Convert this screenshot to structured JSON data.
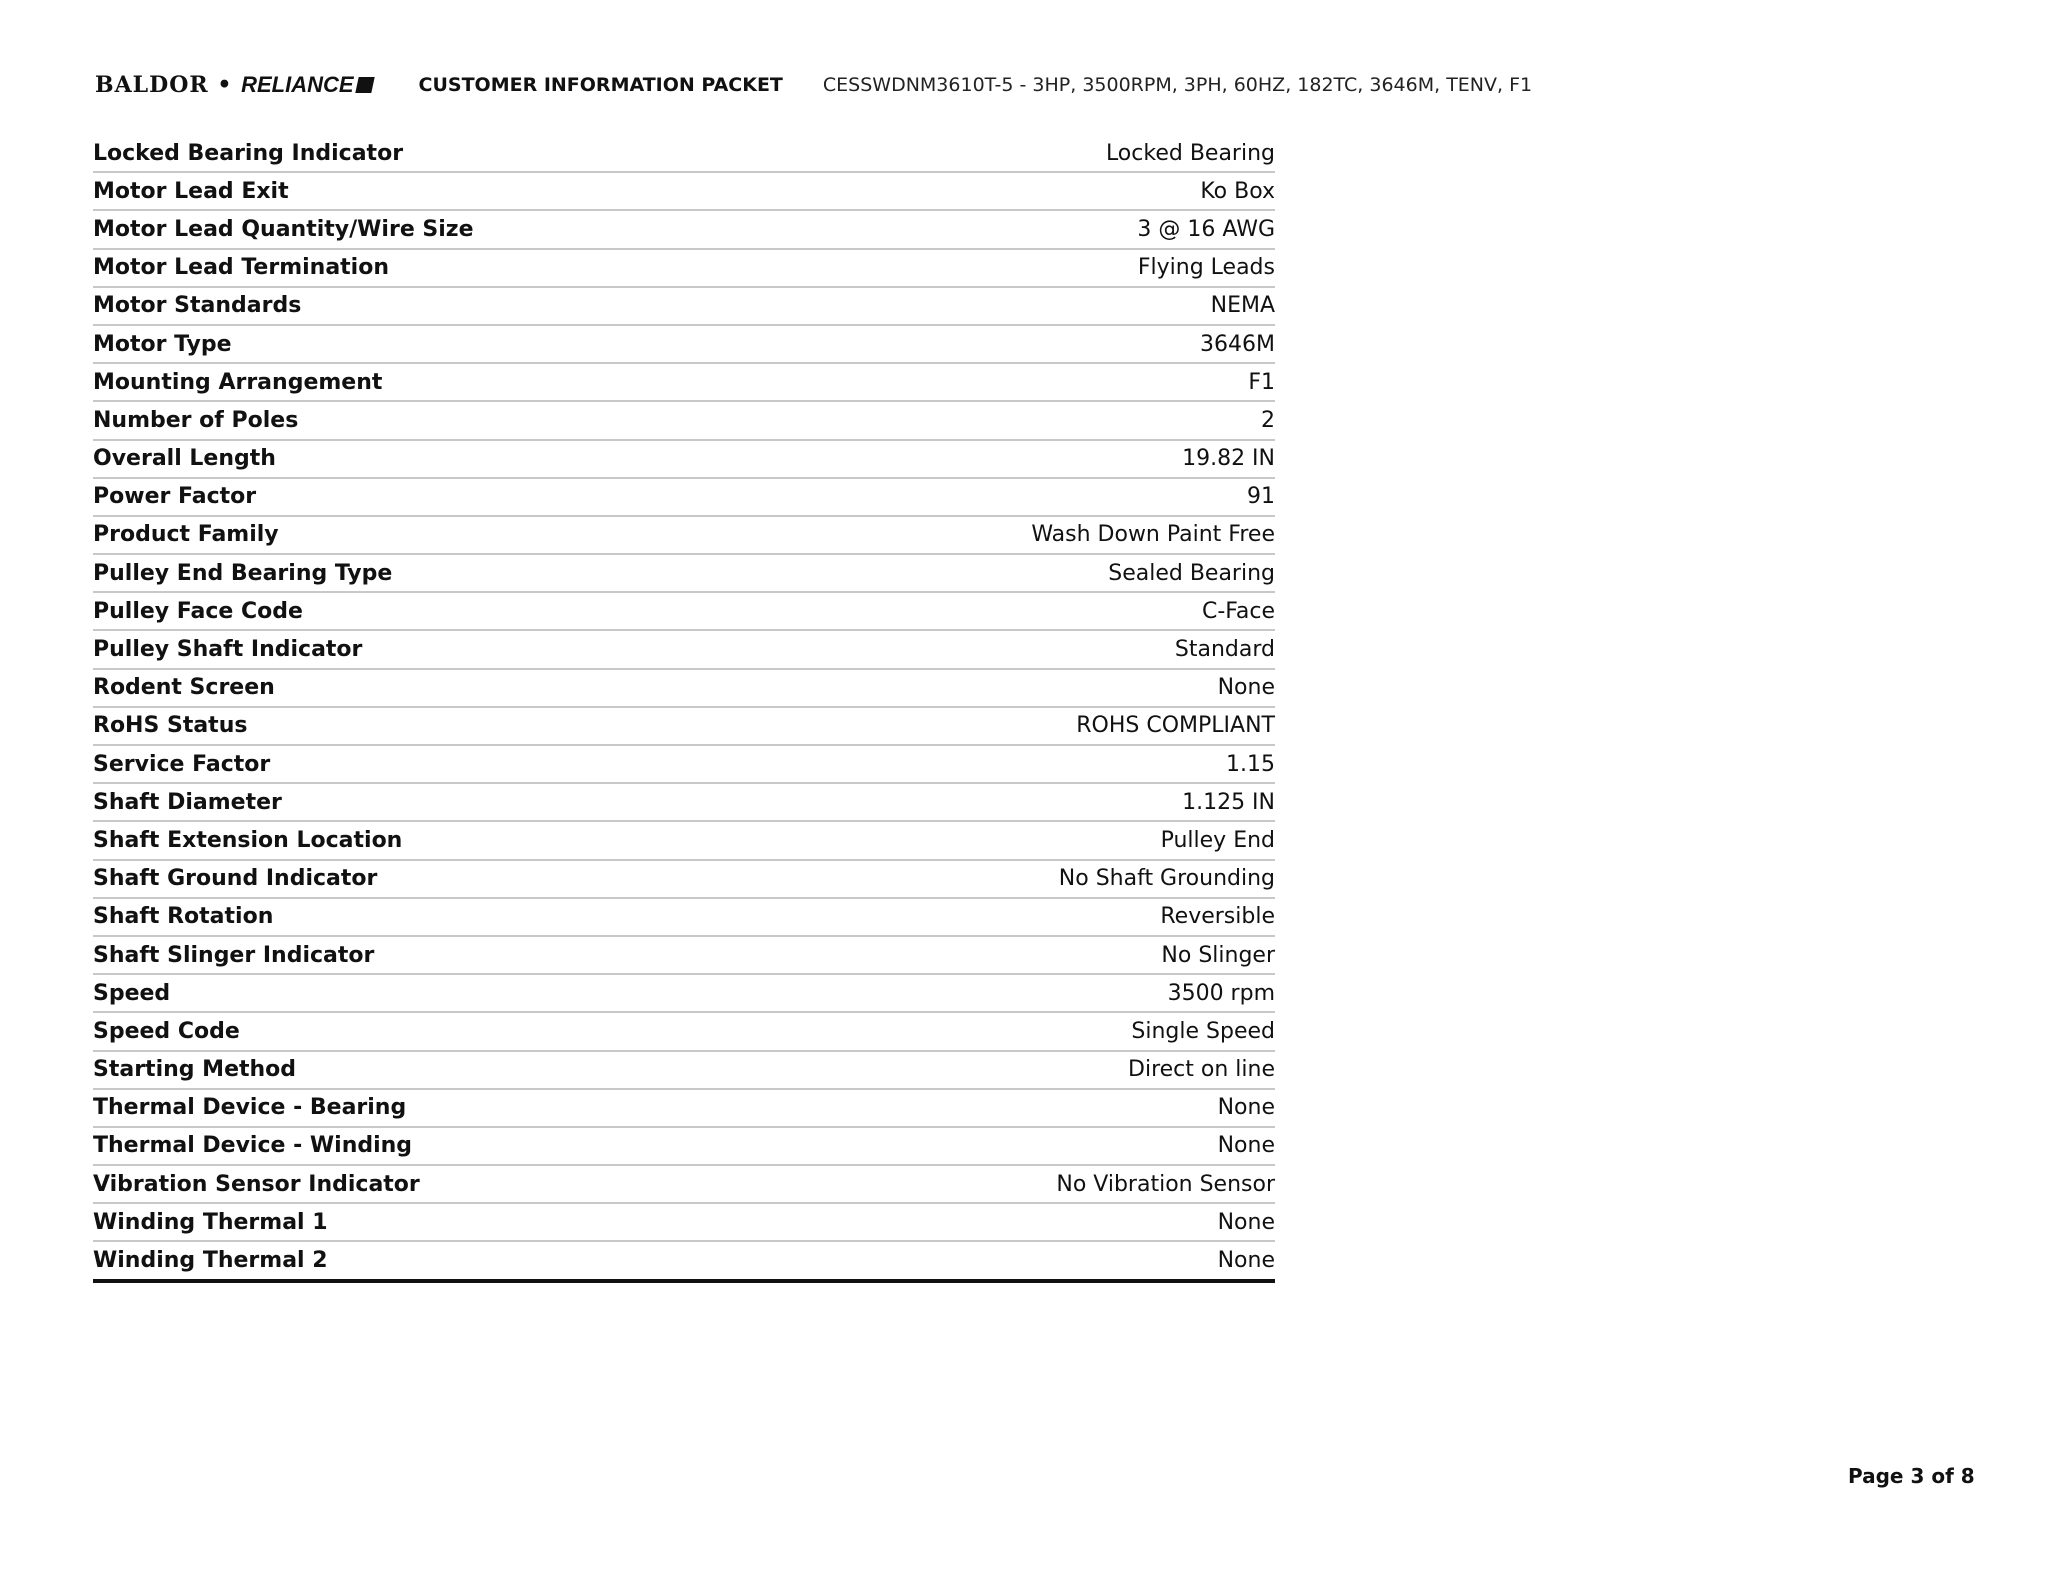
{
  "header": {
    "logo_text": "BALDOR • RELIANCE",
    "logo_left": "BALDOR",
    "logo_sep": "•",
    "logo_right": "RELIANCE",
    "title": "CUSTOMER INFORMATION PACKET",
    "model": "CESSWDNM3610T-5 - 3HP, 3500RPM, 3PH, 60HZ, 182TC, 3646M, TENV, F1"
  },
  "specs": [
    {
      "label": "Locked Bearing Indicator",
      "value": "Locked Bearing"
    },
    {
      "label": "Motor Lead Exit",
      "value": "Ko Box"
    },
    {
      "label": "Motor Lead Quantity/Wire Size",
      "value": "3 @ 16 AWG"
    },
    {
      "label": "Motor Lead Termination",
      "value": "Flying Leads"
    },
    {
      "label": "Motor Standards",
      "value": "NEMA"
    },
    {
      "label": "Motor Type",
      "value": "3646M"
    },
    {
      "label": "Mounting Arrangement",
      "value": "F1"
    },
    {
      "label": "Number of Poles",
      "value": "2"
    },
    {
      "label": "Overall Length",
      "value": "19.82 IN"
    },
    {
      "label": "Power Factor",
      "value": "91"
    },
    {
      "label": "Product Family",
      "value": "Wash Down Paint Free"
    },
    {
      "label": "Pulley End Bearing Type",
      "value": "Sealed Bearing"
    },
    {
      "label": "Pulley Face Code",
      "value": "C-Face"
    },
    {
      "label": "Pulley Shaft Indicator",
      "value": "Standard"
    },
    {
      "label": "Rodent Screen",
      "value": "None"
    },
    {
      "label": "RoHS Status",
      "value": "ROHS COMPLIANT"
    },
    {
      "label": "Service Factor",
      "value": "1.15"
    },
    {
      "label": "Shaft Diameter",
      "value": "1.125 IN"
    },
    {
      "label": "Shaft Extension Location",
      "value": "Pulley End"
    },
    {
      "label": "Shaft Ground Indicator",
      "value": "No Shaft Grounding"
    },
    {
      "label": "Shaft Rotation",
      "value": "Reversible"
    },
    {
      "label": "Shaft Slinger Indicator",
      "value": "No Slinger"
    },
    {
      "label": "Speed",
      "value": "3500 rpm"
    },
    {
      "label": "Speed Code",
      "value": "Single Speed"
    },
    {
      "label": "Starting Method",
      "value": "Direct on line"
    },
    {
      "label": "Thermal Device - Bearing",
      "value": "None"
    },
    {
      "label": "Thermal Device - Winding",
      "value": "None"
    },
    {
      "label": "Vibration Sensor Indicator",
      "value": "No Vibration Sensor"
    },
    {
      "label": "Winding Thermal 1",
      "value": "None"
    },
    {
      "label": "Winding Thermal 2",
      "value": "None"
    }
  ],
  "footer": {
    "page": "Page 3 of 8"
  }
}
